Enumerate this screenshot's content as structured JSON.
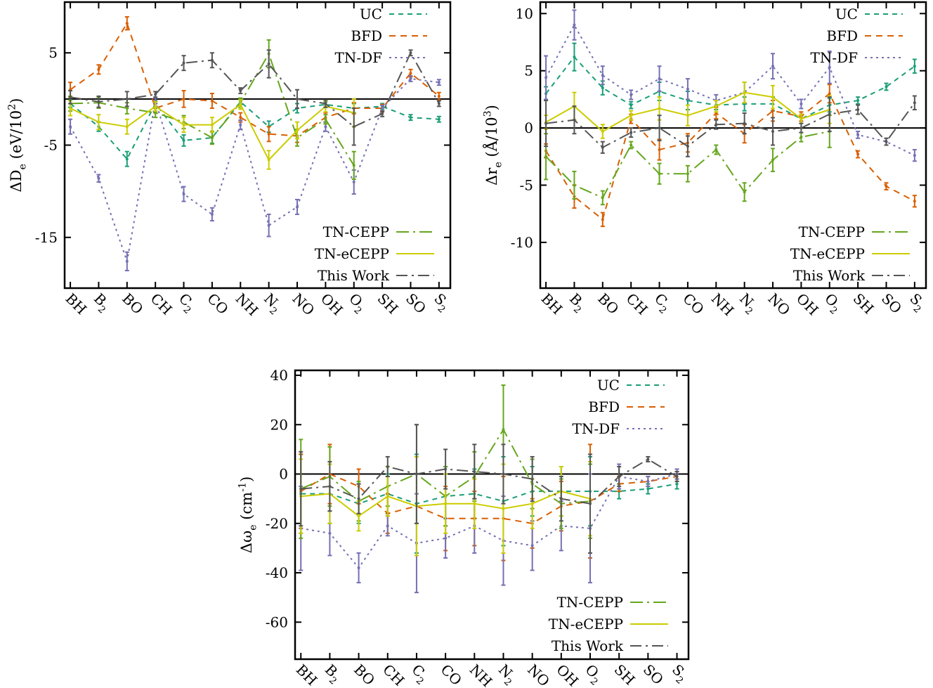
{
  "chart_data": [
    {
      "type": "line",
      "ylabel": "ΔD_e (eV/10^2)",
      "ylim": [
        -20.5,
        10.5
      ],
      "yticks": [
        5,
        -5,
        -15
      ],
      "zero_line": true,
      "categories": [
        "BH",
        "B_2",
        "BO",
        "CH",
        "C_2",
        "CO",
        "NH",
        "N_2",
        "NO",
        "OH",
        "O_2",
        "SH",
        "SO",
        "S_2"
      ],
      "legend_upper": [
        "UC",
        "BFD",
        "TN-DF"
      ],
      "legend_lower": [
        "TN-CEPP",
        "TN-eCEPP",
        "This Work"
      ],
      "series": [
        {
          "name": "UC",
          "color": "#1a9e77",
          "dash": "7,6",
          "values": [
            -0.5,
            -3.0,
            -6.5,
            -0.5,
            -4.5,
            -4.2,
            -0.3,
            -3.0,
            -1.0,
            -0.6,
            -1.0,
            -0.8,
            -2.0,
            -2.2
          ],
          "err": [
            0.4,
            0.5,
            0.8,
            0.3,
            0.6,
            0.6,
            0.3,
            0.6,
            0.5,
            0.3,
            0.5,
            0.3,
            0.3,
            0.3
          ]
        },
        {
          "name": "BFD",
          "color": "#d95f02",
          "dash": "9,7",
          "values": [
            1.0,
            3.2,
            8.2,
            -1.0,
            0,
            -0.2,
            -2.0,
            -3.8,
            -4.0,
            -2.0,
            -1.0,
            -1.0,
            2.8,
            0.3
          ],
          "err": [
            0.8,
            0.5,
            0.7,
            0.5,
            0.9,
            0.8,
            0.5,
            0.8,
            0.7,
            0.5,
            0.6,
            0.4,
            0.4,
            0.4
          ]
        },
        {
          "name": "TN-DF",
          "color": "#7570b3",
          "dash": "3,5",
          "values": [
            -3.0,
            -8.6,
            -17.6,
            -0.2,
            -10.3,
            -12.5,
            -2.8,
            -13.7,
            -11.7,
            -3.0,
            -9.0,
            -1.0,
            2.2,
            1.8
          ],
          "err": [
            0.8,
            0.4,
            1.0,
            0.3,
            0.8,
            0.7,
            0.5,
            1.2,
            0.8,
            0.5,
            1.3,
            0.3,
            0.3,
            0.3
          ]
        },
        {
          "name": "TN-CEPP",
          "color": "#66a61e",
          "dash": "18,6,3,6",
          "values": [
            -0.5,
            -0.4,
            -1.0,
            -1.5,
            -2.5,
            -4.2,
            -0.4,
            4.9,
            -4.2,
            -2.2,
            -7.2,
            null,
            null,
            null
          ],
          "err": [
            0.8,
            0.6,
            0.6,
            0.5,
            0.7,
            0.7,
            0.5,
            1.5,
            0.9,
            0.5,
            1.5,
            null,
            null,
            null
          ]
        },
        {
          "name": "TN-eCEPP",
          "color": "#cccc00",
          "dash": "",
          "values": [
            -1.0,
            -2.5,
            -3.0,
            -0.8,
            -2.8,
            -2.8,
            -0.6,
            -6.6,
            -3.4,
            -0.8,
            -1.5,
            null,
            null,
            null
          ],
          "err": [
            0.8,
            0.8,
            0.8,
            0.5,
            0.8,
            0.8,
            0.5,
            1.0,
            0.9,
            0.6,
            1.5,
            null,
            null,
            null
          ]
        },
        {
          "name": "This Work",
          "color": "#555555",
          "dash": "16,6,3,6",
          "values": [
            0.2,
            -0.3,
            0,
            0.5,
            3.9,
            4.2,
            0.9,
            3.8,
            0,
            -0.5,
            -3.0,
            -1.6,
            5.0,
            -0.5
          ],
          "err": [
            0.7,
            0.6,
            0.8,
            0.3,
            0.8,
            0.8,
            0.3,
            1.5,
            1.0,
            0.4,
            2.0,
            0.3,
            0.3,
            0.3
          ]
        }
      ]
    },
    {
      "type": "line",
      "ylabel": "Δr_e (Å/10^3)",
      "ylim": [
        -14,
        11
      ],
      "yticks": [
        10,
        5,
        0,
        -5,
        -10
      ],
      "zero_line": true,
      "categories": [
        "BH",
        "B_2",
        "BO",
        "CH",
        "C_2",
        "CO",
        "NH",
        "N_2",
        "NO",
        "OH",
        "O_2",
        "SH",
        "SO",
        "S_2"
      ],
      "legend_upper": [
        "UC",
        "BFD",
        "TN-DF"
      ],
      "legend_lower": [
        "TN-CEPP",
        "TN-eCEPP",
        "This Work"
      ],
      "series": [
        {
          "name": "UC",
          "color": "#1a9e77",
          "dash": "7,6",
          "values": [
            3.0,
            6.2,
            3.5,
            2.0,
            3.2,
            2.4,
            2.0,
            2.1,
            2.1,
            0.8,
            2.0,
            2.4,
            3.6,
            5.4
          ],
          "err": [
            0.6,
            1.2,
            0.6,
            0.3,
            0.8,
            0.8,
            0.4,
            0.6,
            0.6,
            0.4,
            0.6,
            0.3,
            0.3,
            0.6
          ]
        },
        {
          "name": "BFD",
          "color": "#d95f02",
          "dash": "9,7",
          "values": [
            -2.0,
            -6.0,
            -8.0,
            0.8,
            -1.9,
            -1.3,
            1.3,
            -0.5,
            1.5,
            1.0,
            3.0,
            -2.3,
            -5.1,
            -6.4
          ],
          "err": [
            0.6,
            1.0,
            0.6,
            0.4,
            0.9,
            0.8,
            0.5,
            0.8,
            0.9,
            0.4,
            0.8,
            0.3,
            0.3,
            0.5
          ]
        },
        {
          "name": "TN-DF",
          "color": "#7570b3",
          "dash": "3,5",
          "values": [
            4.4,
            9.0,
            4.6,
            2.9,
            4.3,
            3.4,
            2.4,
            3.1,
            5.4,
            2.1,
            5.3,
            -0.6,
            -1.2,
            -2.4
          ],
          "err": [
            1.9,
            1.3,
            0.8,
            0.4,
            1.1,
            0.9,
            0.5,
            0.9,
            1.1,
            0.4,
            1.4,
            0.3,
            0.3,
            0.5
          ]
        },
        {
          "name": "TN-CEPP",
          "color": "#66a61e",
          "dash": "18,6,3,6",
          "values": [
            -2.5,
            -5.0,
            -6.1,
            -1.5,
            -4.0,
            -4.0,
            -1.9,
            -5.6,
            -2.8,
            -0.8,
            -0.3,
            null,
            null,
            null
          ],
          "err": [
            2.0,
            1.2,
            0.6,
            0.3,
            0.9,
            0.7,
            0.4,
            0.8,
            1.0,
            0.4,
            1.4,
            null,
            null,
            null
          ]
        },
        {
          "name": "TN-eCEPP",
          "color": "#cccc00",
          "dash": "",
          "values": [
            0.5,
            1.9,
            -0.3,
            1.1,
            1.7,
            1.1,
            1.9,
            3.1,
            2.7,
            0.8,
            1.6,
            null,
            null,
            null
          ],
          "err": [
            0.6,
            1.2,
            0.6,
            0.4,
            1.0,
            0.9,
            0.5,
            0.9,
            1.0,
            0.4,
            1.2,
            null,
            null,
            null
          ]
        },
        {
          "name": "This Work",
          "color": "#555555",
          "dash": "16,6,3,6",
          "values": [
            0.4,
            0.7,
            -1.7,
            -0.4,
            0,
            -1.6,
            0.3,
            0.4,
            -0.3,
            0,
            1.2,
            1.6,
            -1.2,
            2.2
          ],
          "err": [
            2.0,
            1.2,
            0.5,
            0.4,
            1.1,
            0.9,
            0.4,
            0.9,
            1.2,
            0.4,
            1.5,
            0.4,
            0.3,
            0.6
          ]
        }
      ]
    },
    {
      "type": "line",
      "ylabel": "Δω_e (cm^-1)",
      "ylim": [
        -75,
        42
      ],
      "yticks": [
        40,
        20,
        0,
        -20,
        -40,
        -60
      ],
      "zero_line": true,
      "categories": [
        "BH",
        "B_2",
        "BO",
        "CH",
        "C_2",
        "CO",
        "NH",
        "N_2",
        "NO",
        "OH",
        "O_2",
        "SH",
        "SO",
        "S_2"
      ],
      "legend_upper": [
        "UC",
        "BFD",
        "TN-DF"
      ],
      "legend_lower": [
        "TN-CEPP",
        "TN-eCEPP",
        "This Work"
      ],
      "series": [
        {
          "name": "UC",
          "color": "#1a9e77",
          "dash": "7,6",
          "values": [
            -8,
            -8,
            -12,
            -8,
            -12,
            -9,
            -8,
            -11,
            -7,
            -7,
            -7,
            -7,
            -6,
            -4
          ],
          "err": [
            16,
            12,
            8,
            8,
            20,
            12,
            10,
            18,
            10,
            10,
            14,
            3,
            2,
            2
          ]
        },
        {
          "name": "BFD",
          "color": "#d95f02",
          "dash": "9,7",
          "values": [
            -7,
            0,
            -5,
            -16,
            -13,
            -18,
            -18,
            -18,
            -20,
            -13,
            -11,
            -4,
            -3,
            -1
          ],
          "err": [
            15,
            12,
            7,
            8,
            20,
            13,
            11,
            17,
            10,
            10,
            23,
            3,
            2,
            2
          ]
        },
        {
          "name": "TN-DF",
          "color": "#7570b3",
          "dash": "3,5",
          "values": [
            -22,
            -24,
            -38,
            -21,
            -28,
            -26,
            -21,
            -27,
            -29,
            -21,
            -22,
            -1,
            -3,
            0
          ],
          "err": [
            17,
            9,
            6,
            4,
            20,
            8,
            11,
            18,
            10,
            10,
            22,
            5,
            2,
            2
          ]
        },
        {
          "name": "TN-CEPP",
          "color": "#66a61e",
          "dash": "18,6,3,6",
          "values": [
            -6,
            -1,
            -11,
            -5,
            0,
            -9,
            -1,
            18,
            -4,
            -12,
            -11,
            null,
            null,
            null
          ],
          "err": [
            20,
            12,
            8,
            8,
            20,
            12,
            10,
            18,
            10,
            10,
            15,
            null,
            null,
            null
          ]
        },
        {
          "name": "TN-eCEPP",
          "color": "#cccc00",
          "dash": "",
          "values": [
            -9,
            -8,
            -17,
            -9,
            -13,
            -12,
            -12,
            -14,
            -12,
            -7,
            -10,
            null,
            null,
            null
          ],
          "err": [
            15,
            12,
            6,
            8,
            20,
            12,
            10,
            18,
            10,
            10,
            15,
            null,
            null,
            null
          ]
        },
        {
          "name": "This Work",
          "color": "#555555",
          "dash": "16,6,3,6",
          "values": [
            -6,
            -5,
            -10,
            3,
            0,
            2,
            1,
            0,
            -2,
            -10,
            -12,
            -1,
            6,
            -1
          ],
          "err": [
            15,
            10,
            6,
            4,
            20,
            8,
            11,
            12,
            9,
            9,
            20,
            4,
            1,
            2
          ]
        }
      ]
    }
  ]
}
